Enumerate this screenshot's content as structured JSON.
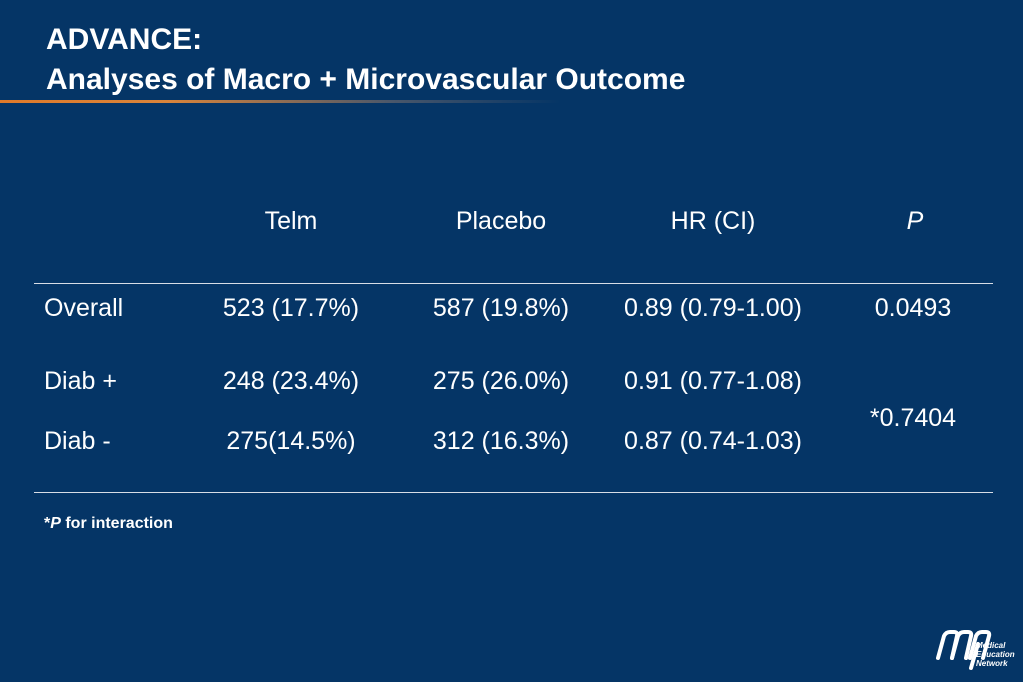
{
  "title": {
    "line1": "ADVANCE:",
    "line2": "Analyses of Macro + Microvascular Outcome"
  },
  "table": {
    "headers": [
      "Telm",
      "Placebo",
      "HR (CI)",
      "P"
    ],
    "rows": [
      {
        "label": "Overall",
        "telm": "523 (17.7%)",
        "placebo": "587 (19.8%)",
        "hr": "0.89 (0.79-1.00)",
        "p": "0.0493"
      },
      {
        "label": "Diab +",
        "telm": "248 (23.4%)",
        "placebo": "275 (26.0%)",
        "hr": "0.91 (0.77-1.08)"
      },
      {
        "label": "Diab -",
        "telm": "275(14.5%)",
        "placebo": "312 (16.3%)",
        "hr": "0.87 (0.74-1.03)"
      }
    ],
    "merged_p": "*0.7404"
  },
  "footnote": {
    "star": "*",
    "p": "P",
    "text": " for interaction"
  },
  "logo": {
    "mark": "MEN",
    "line1": "Medical",
    "line2": "Education",
    "line3": "Network"
  }
}
